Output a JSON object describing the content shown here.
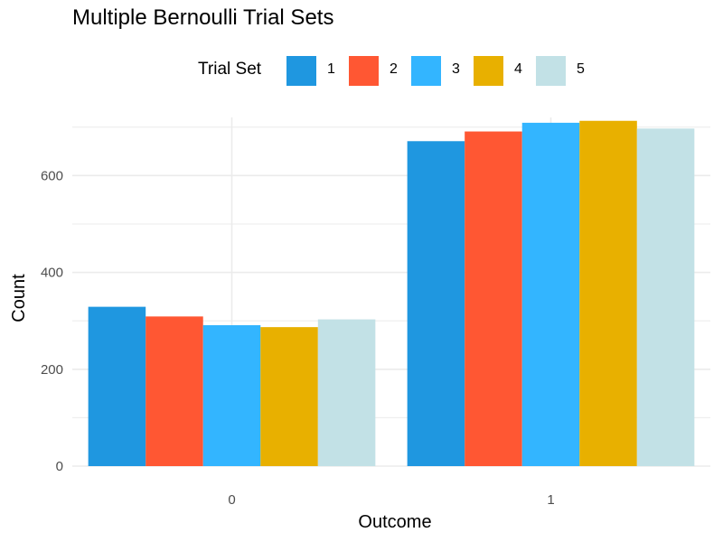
{
  "chart_data": {
    "type": "bar",
    "title": "Multiple Bernoulli Trial Sets",
    "xlabel": "Outcome",
    "ylabel": "Count",
    "categories": [
      "0",
      "1"
    ],
    "ylim": [
      0,
      720
    ],
    "yticks": [
      0,
      200,
      400,
      600
    ],
    "grid": true,
    "legend": {
      "title": "Trial Set",
      "placement": "top"
    },
    "series": [
      {
        "name": "1",
        "color": "#1f97e0",
        "values": [
          329,
          671
        ]
      },
      {
        "name": "2",
        "color": "#ff5733",
        "values": [
          309,
          691
        ]
      },
      {
        "name": "3",
        "color": "#33b5ff",
        "values": [
          291,
          709
        ]
      },
      {
        "name": "4",
        "color": "#e8b000",
        "values": [
          287,
          713
        ]
      },
      {
        "name": "5",
        "color": "#c2e1e6",
        "values": [
          303,
          697
        ]
      }
    ]
  }
}
